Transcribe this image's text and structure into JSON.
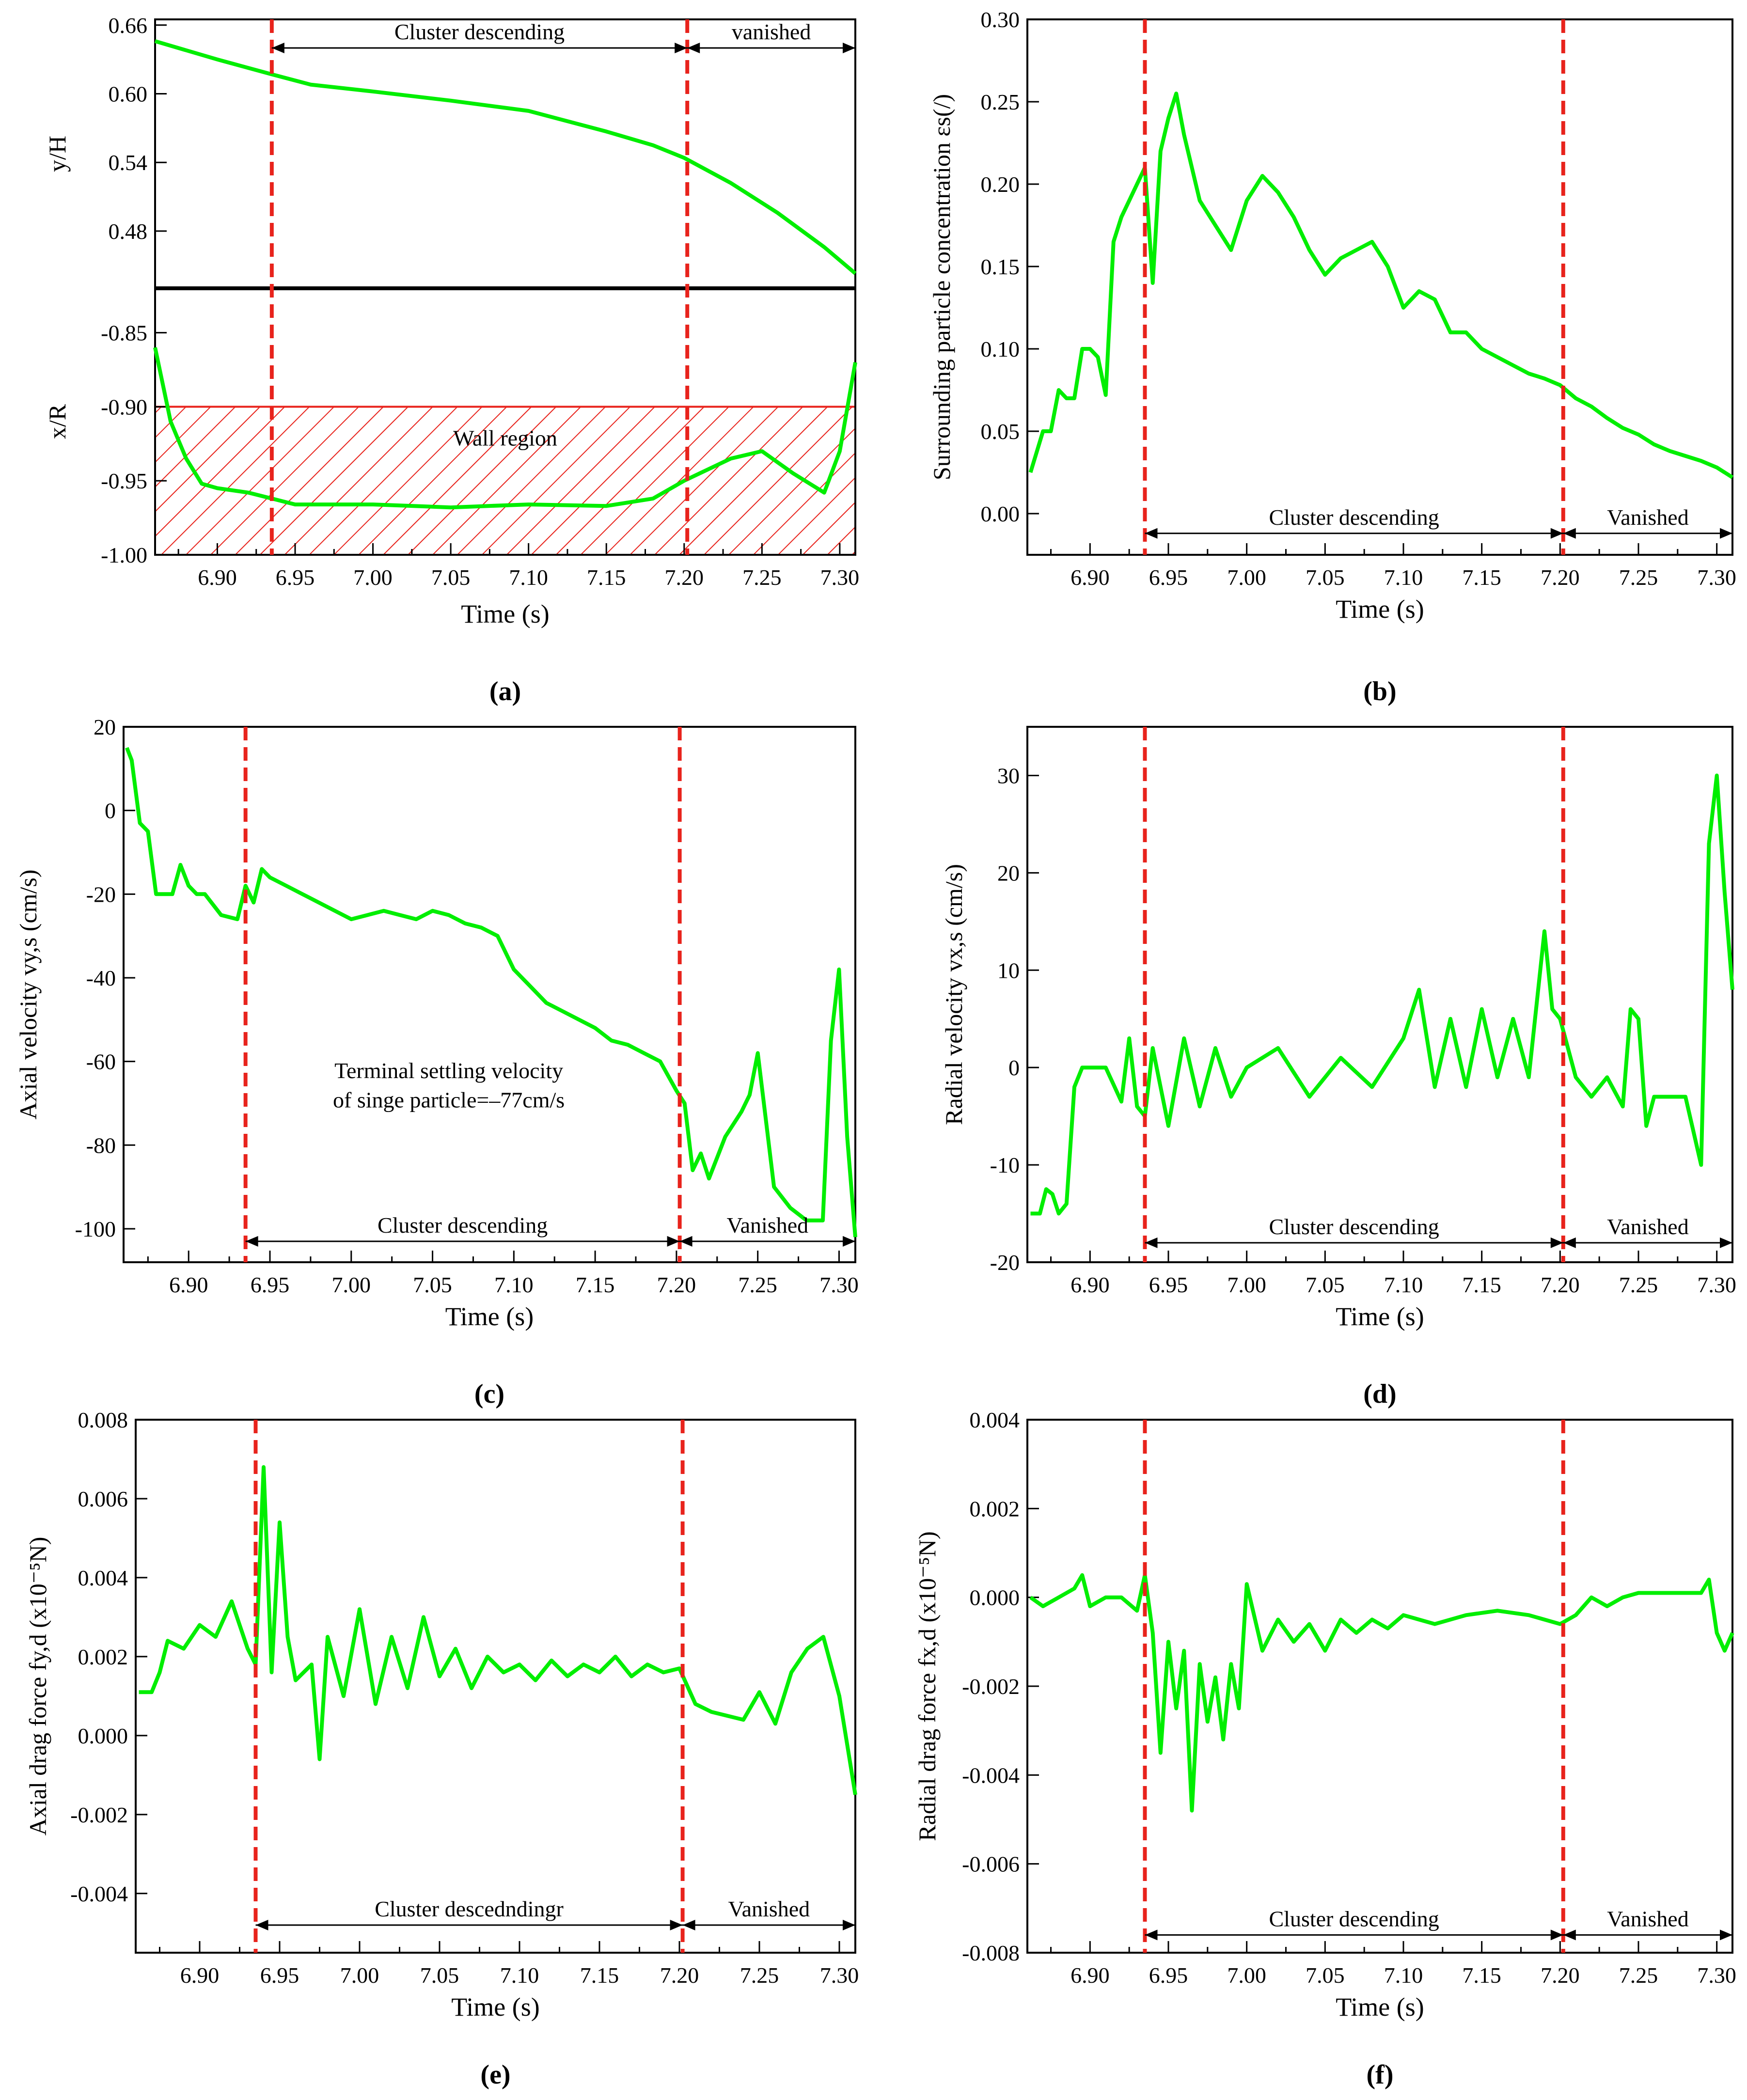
{
  "chart_data": [
    {
      "id": "a",
      "type": "line",
      "panel_label": "(a)",
      "xlabel": "Time (s)",
      "xlim": [
        6.86,
        7.31
      ],
      "xticks": [
        6.9,
        6.95,
        7.0,
        7.05,
        7.1,
        7.15,
        7.2,
        7.25,
        7.3
      ],
      "vlines": [
        6.935,
        7.202
      ],
      "top": {
        "ylabel": "y/H",
        "ylim": [
          0.43,
          0.665
        ],
        "yticks": [
          0.66,
          0.6,
          0.54,
          0.48
        ],
        "ytick_labels": [
          "0.66",
          "0.60",
          "0.54",
          "0.48"
        ],
        "series": [
          {
            "name": "y/H",
            "x": [
              6.86,
              6.9,
              6.935,
              6.96,
              7.0,
              7.05,
              7.1,
              7.15,
              7.18,
              7.2,
              7.23,
              7.26,
              7.29,
              7.31
            ],
            "values": [
              0.646,
              0.63,
              0.617,
              0.608,
              0.602,
              0.594,
              0.585,
              0.567,
              0.555,
              0.544,
              0.522,
              0.496,
              0.466,
              0.443
            ]
          }
        ],
        "annotations": [
          {
            "text": "Cluster descending",
            "x_from": 6.935,
            "x_to": 7.202,
            "y": 0.64
          },
          {
            "text": "vanished",
            "x_from": 7.202,
            "x_to": 7.31,
            "y": 0.64
          }
        ]
      },
      "bottom": {
        "ylabel": "x/R",
        "ylim": [
          -1.0,
          -0.82
        ],
        "yticks": [
          -0.85,
          -0.9,
          -0.95,
          -1.0
        ],
        "ytick_labels": [
          "-0.85",
          "-0.90",
          "-0.95",
          "-1.00"
        ],
        "wall_region": {
          "label": "Wall region",
          "y_from": -1.0,
          "y_to": -0.9
        },
        "series": [
          {
            "name": "x/R",
            "x": [
              6.86,
              6.87,
              6.88,
              6.89,
              6.9,
              6.92,
              6.935,
              6.95,
              7.0,
              7.05,
              7.1,
              7.15,
              7.18,
              7.2,
              7.21,
              7.23,
              7.25,
              7.27,
              7.29,
              7.3,
              7.31
            ],
            "values": [
              -0.86,
              -0.91,
              -0.935,
              -0.952,
              -0.955,
              -0.958,
              -0.962,
              -0.966,
              -0.966,
              -0.968,
              -0.966,
              -0.967,
              -0.962,
              -0.95,
              -0.945,
              -0.935,
              -0.93,
              -0.945,
              -0.958,
              -0.93,
              -0.87
            ]
          }
        ]
      }
    },
    {
      "id": "b",
      "type": "line",
      "panel_label": "(b)",
      "xlabel": "Time (s)",
      "ylabel": "Surrounding particle concentration εs(/)",
      "xlim": [
        6.86,
        7.31
      ],
      "ylim": [
        -0.025,
        0.3
      ],
      "xticks": [
        6.9,
        6.95,
        7.0,
        7.05,
        7.1,
        7.15,
        7.2,
        7.25,
        7.3
      ],
      "yticks": [
        0.0,
        0.05,
        0.1,
        0.15,
        0.2,
        0.25,
        0.3
      ],
      "ytick_labels": [
        "0.00",
        "0.05",
        "0.10",
        "0.15",
        "0.20",
        "0.25",
        "0.30"
      ],
      "vlines": [
        6.935,
        7.202
      ],
      "annotations": [
        {
          "text": "Cluster descending",
          "x_from": 6.935,
          "x_to": 7.202,
          "y": -0.012
        },
        {
          "text": "Vanished",
          "x_from": 7.202,
          "x_to": 7.31,
          "y": -0.012
        }
      ],
      "series": [
        {
          "name": "εs",
          "x": [
            6.862,
            6.87,
            6.875,
            6.88,
            6.885,
            6.89,
            6.895,
            6.9,
            6.905,
            6.91,
            6.915,
            6.92,
            6.925,
            6.93,
            6.935,
            6.94,
            6.945,
            6.95,
            6.955,
            6.96,
            6.97,
            6.98,
            6.99,
            7.0,
            7.01,
            7.02,
            7.03,
            7.04,
            7.05,
            7.06,
            7.07,
            7.08,
            7.09,
            7.1,
            7.11,
            7.12,
            7.13,
            7.14,
            7.15,
            7.16,
            7.17,
            7.18,
            7.19,
            7.2,
            7.21,
            7.22,
            7.23,
            7.24,
            7.25,
            7.26,
            7.27,
            7.28,
            7.29,
            7.3,
            7.31
          ],
          "values": [
            0.025,
            0.05,
            0.05,
            0.075,
            0.07,
            0.07,
            0.1,
            0.1,
            0.095,
            0.072,
            0.165,
            0.18,
            0.19,
            0.2,
            0.21,
            0.14,
            0.22,
            0.24,
            0.255,
            0.23,
            0.19,
            0.175,
            0.16,
            0.19,
            0.205,
            0.195,
            0.18,
            0.16,
            0.145,
            0.155,
            0.16,
            0.165,
            0.15,
            0.125,
            0.135,
            0.13,
            0.11,
            0.11,
            0.1,
            0.095,
            0.09,
            0.085,
            0.082,
            0.078,
            0.07,
            0.065,
            0.058,
            0.052,
            0.048,
            0.042,
            0.038,
            0.035,
            0.032,
            0.028,
            0.022
          ]
        }
      ]
    },
    {
      "id": "c",
      "type": "line",
      "panel_label": "(c)",
      "xlabel": "Time (s)",
      "ylabel": "Axial velocity vy,s (cm/s)",
      "xlim": [
        6.86,
        7.31
      ],
      "ylim": [
        -108,
        20
      ],
      "xticks": [
        6.9,
        6.95,
        7.0,
        7.05,
        7.1,
        7.15,
        7.2,
        7.25,
        7.3
      ],
      "yticks": [
        20,
        0,
        -20,
        -40,
        -60,
        -80,
        -100
      ],
      "ytick_labels": [
        "20",
        "0",
        "-20",
        "-40",
        "-60",
        "-80",
        "-100"
      ],
      "vlines": [
        6.935,
        7.202
      ],
      "annotations": [
        {
          "text": "Terminal settling velocity",
          "x_center": 7.06,
          "y": -64
        },
        {
          "text": "of singe particle=–77cm/s",
          "x_center": 7.06,
          "y": -71
        },
        {
          "text": "Cluster descending",
          "x_from": 6.935,
          "x_to": 7.202,
          "y": -103
        },
        {
          "text": "Vanished",
          "x_from": 7.202,
          "x_to": 7.31,
          "y": -103
        }
      ],
      "series": [
        {
          "name": "vy,s",
          "x": [
            6.862,
            6.865,
            6.87,
            6.875,
            6.88,
            6.885,
            6.89,
            6.895,
            6.9,
            6.905,
            6.91,
            6.92,
            6.93,
            6.935,
            6.94,
            6.945,
            6.95,
            6.96,
            6.97,
            6.98,
            6.99,
            7.0,
            7.01,
            7.02,
            7.03,
            7.04,
            7.05,
            7.06,
            7.07,
            7.08,
            7.09,
            7.1,
            7.11,
            7.12,
            7.13,
            7.14,
            7.15,
            7.16,
            7.17,
            7.18,
            7.19,
            7.2,
            7.205,
            7.21,
            7.215,
            7.22,
            7.23,
            7.24,
            7.245,
            7.25,
            7.26,
            7.27,
            7.28,
            7.29,
            7.295,
            7.3,
            7.305,
            7.31
          ],
          "values": [
            15,
            12,
            -3,
            -5,
            -20,
            -20,
            -20,
            -13,
            -18,
            -20,
            -20,
            -25,
            -26,
            -18,
            -22,
            -14,
            -16,
            -18,
            -20,
            -22,
            -24,
            -26,
            -25,
            -24,
            -25,
            -26,
            -24,
            -25,
            -27,
            -28,
            -30,
            -38,
            -42,
            -46,
            -48,
            -50,
            -52,
            -55,
            -56,
            -58,
            -60,
            -67,
            -70,
            -86,
            -82,
            -88,
            -78,
            -72,
            -68,
            -58,
            -90,
            -95,
            -98,
            -98,
            -55,
            -38,
            -78,
            -102
          ]
        }
      ]
    },
    {
      "id": "d",
      "type": "line",
      "panel_label": "(d)",
      "xlabel": "Time (s)",
      "ylabel": "Radial velocity vx,s (cm/s)",
      "xlim": [
        6.86,
        7.31
      ],
      "ylim": [
        -20,
        35
      ],
      "xticks": [
        6.9,
        6.95,
        7.0,
        7.05,
        7.1,
        7.15,
        7.2,
        7.25,
        7.3
      ],
      "yticks": [
        -20,
        -10,
        0,
        10,
        20,
        30
      ],
      "ytick_labels": [
        "-20",
        "-10",
        "0",
        "10",
        "20",
        "30"
      ],
      "vlines": [
        6.935,
        7.202
      ],
      "annotations": [
        {
          "text": "Cluster descending",
          "x_from": 6.935,
          "x_to": 7.202,
          "y": -18
        },
        {
          "text": "Vanished",
          "x_from": 7.202,
          "x_to": 7.31,
          "y": -18
        }
      ],
      "series": [
        {
          "name": "vx,s",
          "x": [
            6.862,
            6.868,
            6.872,
            6.876,
            6.88,
            6.885,
            6.89,
            6.895,
            6.9,
            6.91,
            6.92,
            6.925,
            6.93,
            6.935,
            6.94,
            6.95,
            6.96,
            6.97,
            6.98,
            6.99,
            7.0,
            7.02,
            7.04,
            7.06,
            7.08,
            7.1,
            7.11,
            7.12,
            7.13,
            7.14,
            7.15,
            7.16,
            7.17,
            7.18,
            7.19,
            7.195,
            7.2,
            7.21,
            7.22,
            7.23,
            7.24,
            7.245,
            7.25,
            7.255,
            7.26,
            7.27,
            7.28,
            7.29,
            7.295,
            7.3,
            7.305,
            7.31
          ],
          "values": [
            -15,
            -15,
            -12.5,
            -13,
            -15,
            -14,
            -2,
            0,
            0,
            0,
            -3.5,
            3,
            -4,
            -5,
            2,
            -6,
            3,
            -4,
            2,
            -3,
            0,
            2,
            -3,
            1,
            -2,
            3,
            8,
            -2,
            5,
            -2,
            6,
            -1,
            5,
            -1,
            14,
            6,
            5,
            -1,
            -3,
            -1,
            -4,
            6,
            5,
            -6,
            -3,
            -3,
            -3,
            -10,
            23,
            30,
            18,
            8
          ]
        }
      ]
    },
    {
      "id": "e",
      "type": "line",
      "panel_label": "(e)",
      "xlabel": "Time (s)",
      "ylabel": "Axial drag force fy,d (x10⁻⁵N)",
      "xlim": [
        6.86,
        7.31
      ],
      "ylim": [
        -0.0055,
        0.008
      ],
      "xticks": [
        6.9,
        6.95,
        7.0,
        7.05,
        7.1,
        7.15,
        7.2,
        7.25,
        7.3
      ],
      "yticks": [
        0.008,
        0.006,
        0.004,
        0.002,
        0.0,
        -0.002,
        -0.004
      ],
      "ytick_labels": [
        "0.008",
        "0.006",
        "0.004",
        "0.002",
        "0.000",
        "-0.002",
        "-0.004"
      ],
      "vlines": [
        6.935,
        7.202
      ],
      "annotations": [
        {
          "text": "Cluster descedndingr",
          "x_from": 6.935,
          "x_to": 7.202,
          "y": -0.0048
        },
        {
          "text": "Vanished",
          "x_from": 7.202,
          "x_to": 7.31,
          "y": -0.0048
        }
      ],
      "series": [
        {
          "name": "fy,d",
          "x": [
            6.862,
            6.87,
            6.875,
            6.88,
            6.89,
            6.9,
            6.91,
            6.92,
            6.93,
            6.935,
            6.94,
            6.945,
            6.95,
            6.955,
            6.96,
            6.97,
            6.975,
            6.98,
            6.99,
            7.0,
            7.01,
            7.02,
            7.03,
            7.04,
            7.05,
            7.06,
            7.07,
            7.08,
            7.09,
            7.1,
            7.11,
            7.12,
            7.13,
            7.14,
            7.15,
            7.16,
            7.17,
            7.18,
            7.19,
            7.2,
            7.21,
            7.22,
            7.23,
            7.24,
            7.25,
            7.26,
            7.27,
            7.28,
            7.29,
            7.3,
            7.31
          ],
          "values": [
            0.0011,
            0.0011,
            0.0016,
            0.0024,
            0.0022,
            0.0028,
            0.0025,
            0.0034,
            0.0022,
            0.0018,
            0.0068,
            0.0016,
            0.0054,
            0.0025,
            0.0014,
            0.0018,
            -0.0006,
            0.0025,
            0.001,
            0.0032,
            0.0008,
            0.0025,
            0.0012,
            0.003,
            0.0015,
            0.0022,
            0.0012,
            0.002,
            0.0016,
            0.0018,
            0.0014,
            0.0019,
            0.0015,
            0.0018,
            0.0016,
            0.002,
            0.0015,
            0.0018,
            0.0016,
            0.0017,
            0.0008,
            0.0006,
            0.0005,
            0.0004,
            0.0011,
            0.0003,
            0.0016,
            0.0022,
            0.0025,
            0.001,
            -0.0015
          ]
        }
      ]
    },
    {
      "id": "f",
      "type": "line",
      "panel_label": "(f)",
      "xlabel": "Time (s)",
      "ylabel": "Radial drag force fx,d (x10⁻⁵N)",
      "xlim": [
        6.86,
        7.31
      ],
      "ylim": [
        -0.008,
        0.004
      ],
      "xticks": [
        6.9,
        6.95,
        7.0,
        7.05,
        7.1,
        7.15,
        7.2,
        7.25,
        7.3
      ],
      "yticks": [
        0.004,
        0.002,
        0.0,
        -0.002,
        -0.004,
        -0.006,
        -0.008
      ],
      "ytick_labels": [
        "0.004",
        "0.002",
        "0.000",
        "-0.002",
        "-0.004",
        "-0.006",
        "-0.008"
      ],
      "vlines": [
        6.935,
        7.202
      ],
      "annotations": [
        {
          "text": "Cluster descending",
          "x_from": 6.935,
          "x_to": 7.202,
          "y": -0.0076
        },
        {
          "text": "Vanished",
          "x_from": 7.202,
          "x_to": 7.31,
          "y": -0.0076
        }
      ],
      "series": [
        {
          "name": "fx,d",
          "x": [
            6.862,
            6.87,
            6.88,
            6.89,
            6.895,
            6.9,
            6.91,
            6.92,
            6.93,
            6.935,
            6.94,
            6.945,
            6.95,
            6.955,
            6.96,
            6.965,
            6.97,
            6.975,
            6.98,
            6.985,
            6.99,
            6.995,
            7.0,
            7.01,
            7.02,
            7.03,
            7.04,
            7.05,
            7.06,
            7.07,
            7.08,
            7.09,
            7.1,
            7.12,
            7.14,
            7.16,
            7.18,
            7.2,
            7.21,
            7.22,
            7.23,
            7.24,
            7.25,
            7.26,
            7.27,
            7.28,
            7.29,
            7.295,
            7.3,
            7.305,
            7.31
          ],
          "values": [
            0.0,
            -0.0002,
            0.0,
            0.0002,
            0.0005,
            -0.0002,
            0.0,
            0.0,
            -0.0003,
            0.0005,
            -0.0008,
            -0.0035,
            -0.001,
            -0.0025,
            -0.0012,
            -0.0048,
            -0.0015,
            -0.0028,
            -0.0018,
            -0.0032,
            -0.0015,
            -0.0025,
            0.0003,
            -0.0012,
            -0.0005,
            -0.001,
            -0.0006,
            -0.0012,
            -0.0005,
            -0.0008,
            -0.0005,
            -0.0007,
            -0.0004,
            -0.0006,
            -0.0004,
            -0.0003,
            -0.0004,
            -0.0006,
            -0.0004,
            0.0,
            -0.0002,
            0.0,
            0.0001,
            0.0001,
            0.0001,
            0.0001,
            0.0001,
            0.0004,
            -0.0008,
            -0.0012,
            -0.0008
          ]
        }
      ]
    }
  ]
}
